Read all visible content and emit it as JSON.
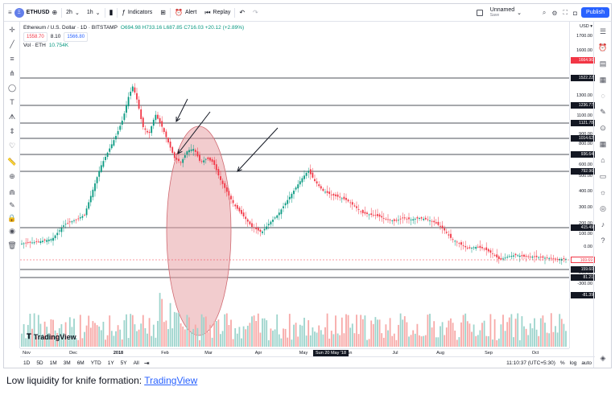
{
  "toolbar": {
    "symbol": "ETHUSD",
    "logo_letter": "Ξ",
    "interval": "2h",
    "interval2": "1h",
    "indicators_label": "Indicators",
    "alert_label": "Alert",
    "replay_label": "Replay",
    "layout_name": "Unnamed",
    "layout_status": "Save",
    "publish_label": "Publish"
  },
  "legend": {
    "title": "Ethereum / U.S. Dollar · 1D · BITSTAMP",
    "ohlc": "O694.98 H733.16 L687.85 C716.03 +20.12 (+2.89%)",
    "bid": "1558.70",
    "spread": "8.10",
    "ask": "1566.80",
    "vol_label": "Vol · ETH",
    "vol_value": "10.754K"
  },
  "price_scale": {
    "currency": "USD ▾",
    "ticks": [
      "1700.00",
      "1600.00",
      "1300.00",
      "1200.00",
      "1100.00",
      "1000.00",
      "900.00",
      "800.00",
      "700.00",
      "600.00",
      "500.00",
      "400.00",
      "300.00",
      "200.00",
      "100.00",
      "0.00",
      "-100.00",
      "-200.00",
      "-300.00"
    ],
    "level_labels": [
      "1664.96",
      "1522.22",
      "1236.77",
      "1121.78",
      "1014.62",
      "936.64",
      "792.96",
      "415.49",
      "159.60",
      "81.21"
    ],
    "current_price": "169.69",
    "volume_label": "-81.39"
  },
  "time_axis": {
    "labels": [
      "Nov",
      "Dec",
      "2018",
      "Feb",
      "Mar",
      "Apr",
      "May",
      "Jun",
      "Jul",
      "Aug",
      "Sep",
      "Oct"
    ],
    "crosshair": "Sun 20 May '18"
  },
  "bottom": {
    "ranges": [
      "1D",
      "5D",
      "1M",
      "3M",
      "6M",
      "YTD",
      "1Y",
      "5Y",
      "All"
    ],
    "clock": "11:10:37 (UTC+5:30)",
    "pct": "%",
    "log": "log",
    "auto": "auto"
  },
  "watermark": "TradingView",
  "caption": {
    "text": "Low liquidity for knife formation: ",
    "link": "TradingView"
  },
  "colors": {
    "up": "#089981",
    "down": "#f23645",
    "accent": "#2962ff",
    "highlight": "#e8a2a6"
  }
}
